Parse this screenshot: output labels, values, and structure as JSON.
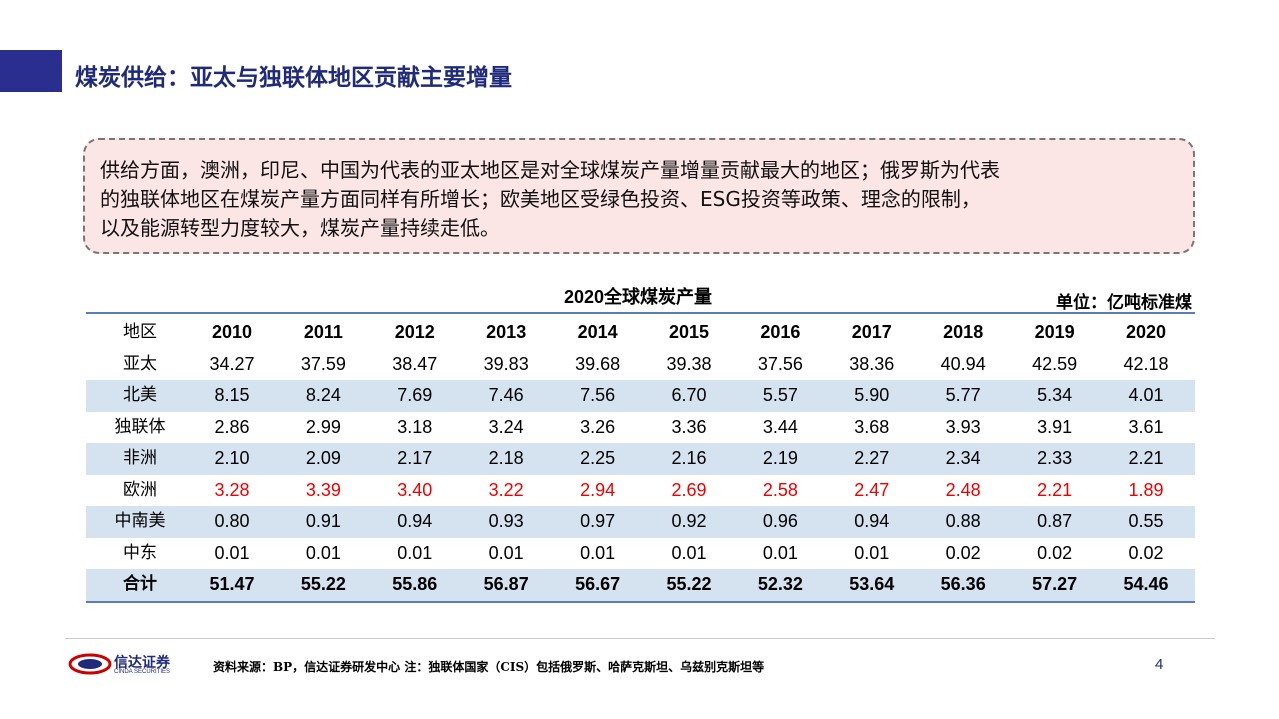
{
  "header": {
    "title": "煤炭供给：亚太与独联体地区贡献主要增量"
  },
  "summary": {
    "lines": [
      "供给方面，澳洲，印尼、中国为代表的亚太地区是对全球煤炭产量增量贡献最大的地区；俄罗斯为代表",
      "的独联体地区在煤炭产量方面同样有所增长；欧美地区受绿色投资、ESG投资等政策、理念的限制，",
      "以及能源转型力度较大，煤炭产量持续走低。"
    ]
  },
  "table": {
    "title": "2020全球煤炭产量",
    "unit": "单位：亿吨标准煤",
    "columns": [
      "地区",
      "2010",
      "2011",
      "2012",
      "2013",
      "2014",
      "2015",
      "2016",
      "2017",
      "2018",
      "2019",
      "2020"
    ],
    "rows": [
      [
        "亚太",
        "34.27",
        "37.59",
        "38.47",
        "39.83",
        "39.68",
        "39.38",
        "37.56",
        "38.36",
        "40.94",
        "42.59",
        "42.18"
      ],
      [
        "北美",
        "8.15",
        "8.24",
        "7.69",
        "7.46",
        "7.56",
        "6.70",
        "5.57",
        "5.90",
        "5.77",
        "5.34",
        "4.01"
      ],
      [
        "独联体",
        "2.86",
        "2.99",
        "3.18",
        "3.24",
        "3.26",
        "3.36",
        "3.44",
        "3.68",
        "3.93",
        "3.91",
        "3.61"
      ],
      [
        "非洲",
        "2.10",
        "2.09",
        "2.17",
        "2.18",
        "2.25",
        "2.16",
        "2.19",
        "2.27",
        "2.34",
        "2.33",
        "2.21"
      ],
      [
        "欧洲",
        "3.28",
        "3.39",
        "3.40",
        "3.22",
        "2.94",
        "2.69",
        "2.58",
        "2.47",
        "2.48",
        "2.21",
        "1.89"
      ],
      [
        "中南美",
        "0.80",
        "0.91",
        "0.94",
        "0.93",
        "0.97",
        "0.92",
        "0.96",
        "0.94",
        "0.88",
        "0.87",
        "0.55"
      ],
      [
        "中东",
        "0.01",
        "0.01",
        "0.01",
        "0.01",
        "0.01",
        "0.01",
        "0.01",
        "0.01",
        "0.02",
        "0.02",
        "0.02"
      ],
      [
        "合计",
        "51.47",
        "55.22",
        "55.86",
        "56.87",
        "56.67",
        "55.22",
        "52.32",
        "53.64",
        "56.36",
        "57.27",
        "54.46"
      ]
    ]
  },
  "footer": {
    "logo_cn": "信达证券",
    "logo_en": "CINDA SECURITIES",
    "source": "资料来源：BP，信达证券研发中心 注：独联体国家（CIS）包括俄罗斯、哈萨克斯坦、乌兹别克斯坦等",
    "page": "4"
  }
}
